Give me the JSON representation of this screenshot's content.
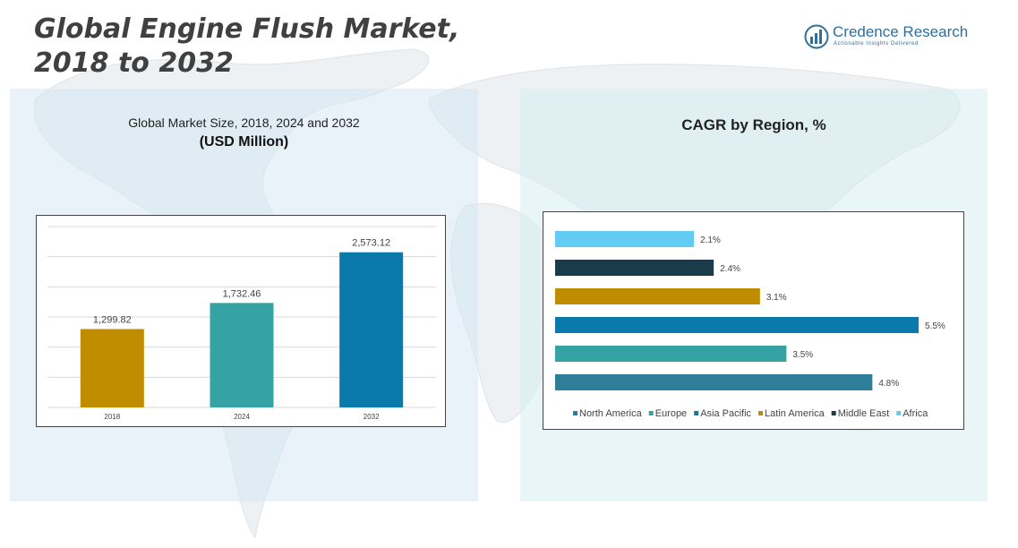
{
  "header": {
    "title_line1": "Global Engine Flush Market,",
    "title_line2": "2018 to 2032"
  },
  "logo": {
    "name": "Credence Research",
    "tagline": "Actionable Insights Delivered",
    "icon": "bar-chart-logo-icon"
  },
  "colors": {
    "north_america": "#2e7d99",
    "europe": "#35a3a3",
    "asia_pacific": "#0a79ab",
    "latin_america": "#c08d00",
    "middle_east": "#1a3c4a",
    "africa": "#62ccf2",
    "title_gray": "#404040",
    "brand_blue": "#2d6f9e"
  },
  "chart_data": [
    {
      "type": "bar",
      "title": "Global Market Size, 2018, 2024 and 2032",
      "subtitle": "(USD Million)",
      "categories": [
        "2018",
        "2024",
        "2032"
      ],
      "values": [
        1299.82,
        1732.46,
        2573.12
      ],
      "value_labels": [
        "1,299.82",
        "1,732.46",
        "2,573.12"
      ],
      "bar_colors": [
        "#c08d00",
        "#35a3a3",
        "#0a79ab"
      ],
      "ylim": [
        0,
        3000
      ],
      "grid": true,
      "xlabel": "",
      "ylabel": ""
    },
    {
      "type": "bar",
      "orientation": "horizontal",
      "title": "CAGR by Region, %",
      "categories": [
        "Africa",
        "Middle East",
        "Latin America",
        "Asia Pacific",
        "Europe",
        "North America"
      ],
      "values": [
        2.1,
        2.4,
        3.1,
        5.5,
        3.5,
        4.8
      ],
      "value_labels": [
        "2.1%",
        "2.4%",
        "3.1%",
        "5.5%",
        "3.5%",
        "4.8%"
      ],
      "bar_colors": [
        "#62ccf2",
        "#1a3c4a",
        "#c08d00",
        "#0a79ab",
        "#35a3a3",
        "#2e7d99"
      ],
      "xlim": [
        0,
        5.5
      ],
      "grid": false,
      "legend": {
        "placement": "bottom",
        "entries": [
          {
            "label": "North America",
            "color": "#2e7d99"
          },
          {
            "label": "Europe",
            "color": "#35a3a3"
          },
          {
            "label": "Asia Pacific",
            "color": "#0a79ab"
          },
          {
            "label": "Latin America",
            "color": "#c08d00"
          },
          {
            "label": "Middle East",
            "color": "#1a3c4a"
          },
          {
            "label": "Africa",
            "color": "#62ccf2"
          }
        ]
      }
    }
  ]
}
